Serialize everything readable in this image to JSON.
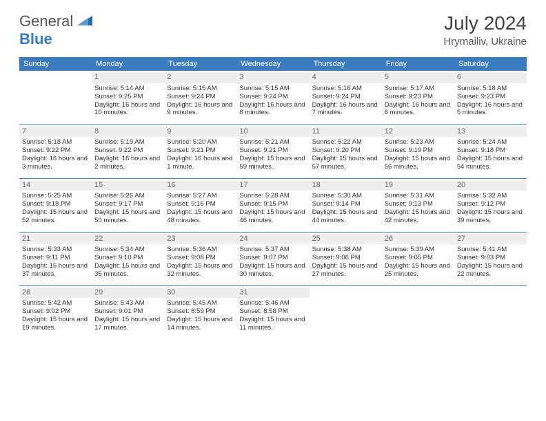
{
  "brand": {
    "part1": "General",
    "part2": "Blue"
  },
  "title": "July 2024",
  "location": "Hrymailiv, Ukraine",
  "colors": {
    "header_bg": "#3b7bbf",
    "header_text": "#ffffff",
    "daynum_bg": "#eeeeee",
    "cell_border": "#3b7bbf",
    "body_text": "#333333"
  },
  "weekdays": [
    "Sunday",
    "Monday",
    "Tuesday",
    "Wednesday",
    "Thursday",
    "Friday",
    "Saturday"
  ],
  "start_offset": 1,
  "days": [
    {
      "n": 1,
      "sr": "5:14 AM",
      "ss": "9:25 PM",
      "dl": "16 hours and 10 minutes."
    },
    {
      "n": 2,
      "sr": "5:15 AM",
      "ss": "9:24 PM",
      "dl": "16 hours and 9 minutes."
    },
    {
      "n": 3,
      "sr": "5:15 AM",
      "ss": "9:24 PM",
      "dl": "16 hours and 8 minutes."
    },
    {
      "n": 4,
      "sr": "5:16 AM",
      "ss": "9:24 PM",
      "dl": "16 hours and 7 minutes."
    },
    {
      "n": 5,
      "sr": "5:17 AM",
      "ss": "9:23 PM",
      "dl": "16 hours and 6 minutes."
    },
    {
      "n": 6,
      "sr": "5:18 AM",
      "ss": "9:23 PM",
      "dl": "16 hours and 5 minutes."
    },
    {
      "n": 7,
      "sr": "5:18 AM",
      "ss": "9:22 PM",
      "dl": "16 hours and 3 minutes."
    },
    {
      "n": 8,
      "sr": "5:19 AM",
      "ss": "9:22 PM",
      "dl": "16 hours and 2 minutes."
    },
    {
      "n": 9,
      "sr": "5:20 AM",
      "ss": "9:21 PM",
      "dl": "16 hours and 1 minute."
    },
    {
      "n": 10,
      "sr": "5:21 AM",
      "ss": "9:21 PM",
      "dl": "15 hours and 59 minutes."
    },
    {
      "n": 11,
      "sr": "5:22 AM",
      "ss": "9:20 PM",
      "dl": "15 hours and 57 minutes."
    },
    {
      "n": 12,
      "sr": "5:23 AM",
      "ss": "9:19 PM",
      "dl": "15 hours and 56 minutes."
    },
    {
      "n": 13,
      "sr": "5:24 AM",
      "ss": "9:18 PM",
      "dl": "15 hours and 54 minutes."
    },
    {
      "n": 14,
      "sr": "5:25 AM",
      "ss": "9:18 PM",
      "dl": "15 hours and 52 minutes."
    },
    {
      "n": 15,
      "sr": "5:26 AM",
      "ss": "9:17 PM",
      "dl": "15 hours and 50 minutes."
    },
    {
      "n": 16,
      "sr": "5:27 AM",
      "ss": "9:16 PM",
      "dl": "15 hours and 48 minutes."
    },
    {
      "n": 17,
      "sr": "5:28 AM",
      "ss": "9:15 PM",
      "dl": "15 hours and 46 minutes."
    },
    {
      "n": 18,
      "sr": "5:30 AM",
      "ss": "9:14 PM",
      "dl": "15 hours and 44 minutes."
    },
    {
      "n": 19,
      "sr": "5:31 AM",
      "ss": "9:13 PM",
      "dl": "15 hours and 42 minutes."
    },
    {
      "n": 20,
      "sr": "5:32 AM",
      "ss": "9:12 PM",
      "dl": "15 hours and 39 minutes."
    },
    {
      "n": 21,
      "sr": "5:33 AM",
      "ss": "9:11 PM",
      "dl": "15 hours and 37 minutes."
    },
    {
      "n": 22,
      "sr": "5:34 AM",
      "ss": "9:10 PM",
      "dl": "15 hours and 35 minutes."
    },
    {
      "n": 23,
      "sr": "5:36 AM",
      "ss": "9:08 PM",
      "dl": "15 hours and 32 minutes."
    },
    {
      "n": 24,
      "sr": "5:37 AM",
      "ss": "9:07 PM",
      "dl": "15 hours and 30 minutes."
    },
    {
      "n": 25,
      "sr": "5:38 AM",
      "ss": "9:06 PM",
      "dl": "15 hours and 27 minutes."
    },
    {
      "n": 26,
      "sr": "5:39 AM",
      "ss": "9:05 PM",
      "dl": "15 hours and 25 minutes."
    },
    {
      "n": 27,
      "sr": "5:41 AM",
      "ss": "9:03 PM",
      "dl": "15 hours and 22 minutes."
    },
    {
      "n": 28,
      "sr": "5:42 AM",
      "ss": "9:02 PM",
      "dl": "15 hours and 19 minutes."
    },
    {
      "n": 29,
      "sr": "5:43 AM",
      "ss": "9:01 PM",
      "dl": "15 hours and 17 minutes."
    },
    {
      "n": 30,
      "sr": "5:45 AM",
      "ss": "8:59 PM",
      "dl": "15 hours and 14 minutes."
    },
    {
      "n": 31,
      "sr": "5:46 AM",
      "ss": "8:58 PM",
      "dl": "15 hours and 11 minutes."
    }
  ],
  "labels": {
    "sunrise": "Sunrise:",
    "sunset": "Sunset:",
    "daylight": "Daylight:"
  }
}
